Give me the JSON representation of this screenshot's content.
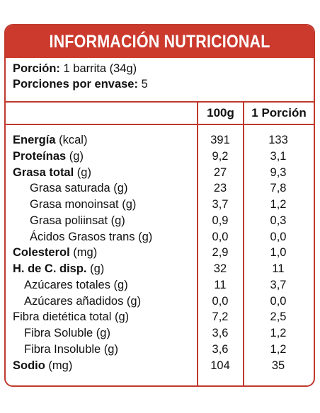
{
  "title": "INFORMACIÓN NUTRICIONAL",
  "porcion_label": "Porción:",
  "porcion_value": "1 barrita (34g)",
  "porciones_label": "Porciones por envase:",
  "porciones_value": "5",
  "col_100g": "100g",
  "col_porcion": "1 Porción",
  "rows": [
    {
      "bold": "Energía",
      "rest": " (kcal)",
      "v1": "391",
      "v2": "133"
    },
    {
      "bold": "Proteínas",
      "rest": " (g)",
      "v1": "9,2",
      "v2": "3,1"
    },
    {
      "bold": "Grasa total",
      "rest": " (g)",
      "v1": "27",
      "v2": "9,3"
    },
    {
      "bold": "",
      "rest": "Grasa saturada (g)",
      "v1": "23",
      "v2": "7,8"
    },
    {
      "bold": "",
      "rest": "Grasa monoinsat (g)",
      "v1": "3,7",
      "v2": "1,2"
    },
    {
      "bold": "",
      "rest": "Grasa poliinsat (g)",
      "v1": "0,9",
      "v2": "0,3"
    },
    {
      "bold": "",
      "rest": "Ácidos Grasos trans (g)",
      "v1": "0,0",
      "v2": "0,0"
    },
    {
      "bold": "Colesterol",
      "rest": " (mg)",
      "v1": "2,9",
      "v2": "1,0"
    },
    {
      "bold": "H. de C. disp.",
      "rest": " (g)",
      "v1": "32",
      "v2": "11"
    },
    {
      "bold": "",
      "rest": "Azúcares totales (g)",
      "v1": "11",
      "v2": "3,7"
    },
    {
      "bold": "",
      "rest": "Azúcares añadidos (g)",
      "v1": "0,0",
      "v2": "0,0"
    },
    {
      "bold": "",
      "rest": "Fibra dietética total (g)",
      "v1": "7,2",
      "v2": "2,5"
    },
    {
      "bold": "",
      "rest": "Fibra Soluble (g)",
      "v1": "3,6",
      "v2": "1,2"
    },
    {
      "bold": "",
      "rest": "Fibra Insoluble (g)",
      "v1": "3,6",
      "v2": "1,2"
    },
    {
      "bold": "Sodio",
      "rest": " (mg)",
      "v1": "104",
      "v2": "35"
    }
  ],
  "accent_color": "#cc3a2e"
}
